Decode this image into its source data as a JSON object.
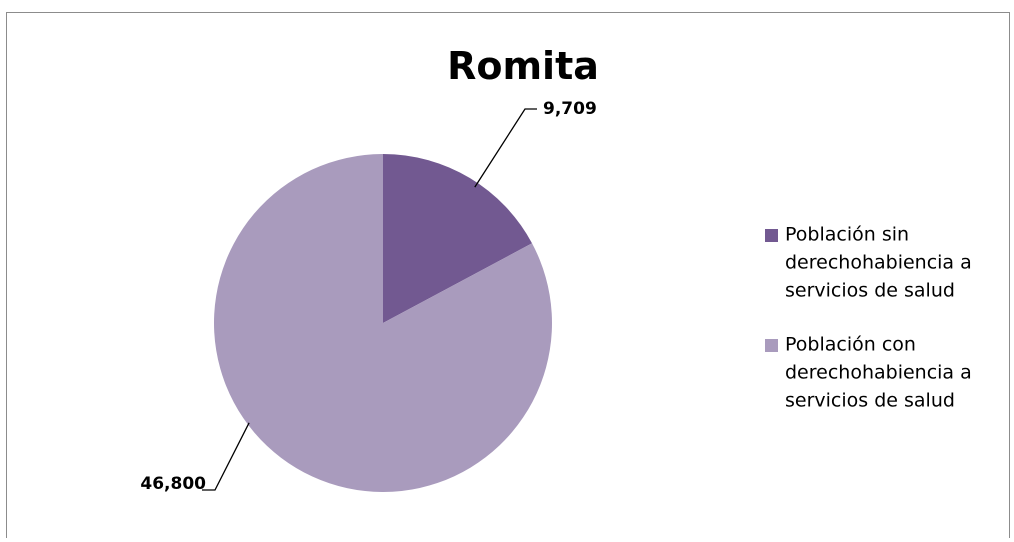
{
  "chart_data": {
    "type": "pie",
    "title": "Romita",
    "categories": [
      "Población sin derechohabiencia a servicios de salud",
      "Población con derechohabiencia a servicios de salud"
    ],
    "values": [
      9709,
      46800
    ],
    "data_labels": [
      "9,709",
      "46,800"
    ],
    "legend": {
      "placement": "right",
      "entries": [
        {
          "lines": [
            "Población sin",
            "derechohabiencia a",
            "servicios de salud"
          ],
          "color": "#725991"
        },
        {
          "lines": [
            "Población con",
            "derechohabiencia a",
            "servicios de salud"
          ],
          "color": "#a99bbd"
        }
      ]
    },
    "colors": [
      "#725991",
      "#a99bbd"
    ]
  }
}
